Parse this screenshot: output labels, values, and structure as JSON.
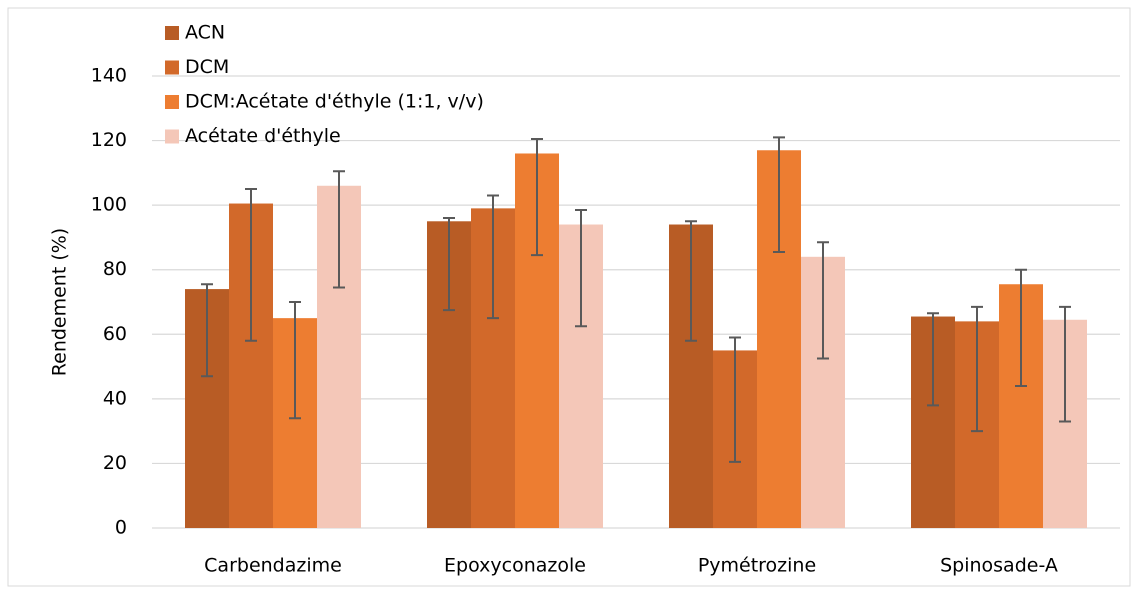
{
  "chart_data": {
    "type": "bar",
    "y_label": "Rendement (%)",
    "categories": [
      "Carbendazime",
      "Epoxyconazole",
      "Pymétrozine",
      "Spinosade-A"
    ],
    "series": [
      {
        "name": "ACN",
        "color": "#b85c25",
        "values": [
          74,
          95,
          94,
          65.5
        ],
        "error_plus": [
          1.5,
          1,
          1,
          1
        ],
        "error_minus": [
          27,
          27.5,
          36,
          27.5
        ]
      },
      {
        "name": "DCM",
        "color": "#d2692a",
        "values": [
          100.5,
          99,
          55,
          64
        ],
        "error_plus": [
          4.5,
          4,
          4,
          4.5
        ],
        "error_minus": [
          42.5,
          34,
          34.5,
          34
        ]
      },
      {
        "name": "DCM:Acétate d'éthyle (1:1, v/v)",
        "color": "#ed7d31",
        "values": [
          65,
          116,
          117,
          75.5
        ],
        "error_plus": [
          5,
          4.5,
          4,
          4.5
        ],
        "error_minus": [
          31,
          31.5,
          31.5,
          31.5
        ]
      },
      {
        "name": "Acétate d'éthyle",
        "color": "#f4c7b8",
        "values": [
          106,
          94,
          84,
          64.5
        ],
        "error_plus": [
          4.5,
          4.5,
          4.5,
          4
        ],
        "error_minus": [
          31.5,
          31.5,
          31.5,
          31.5
        ]
      }
    ],
    "ylim": [
      0,
      140
    ],
    "yticks": [
      0,
      20,
      40,
      60,
      80,
      100,
      120,
      140
    ],
    "grid": true
  }
}
